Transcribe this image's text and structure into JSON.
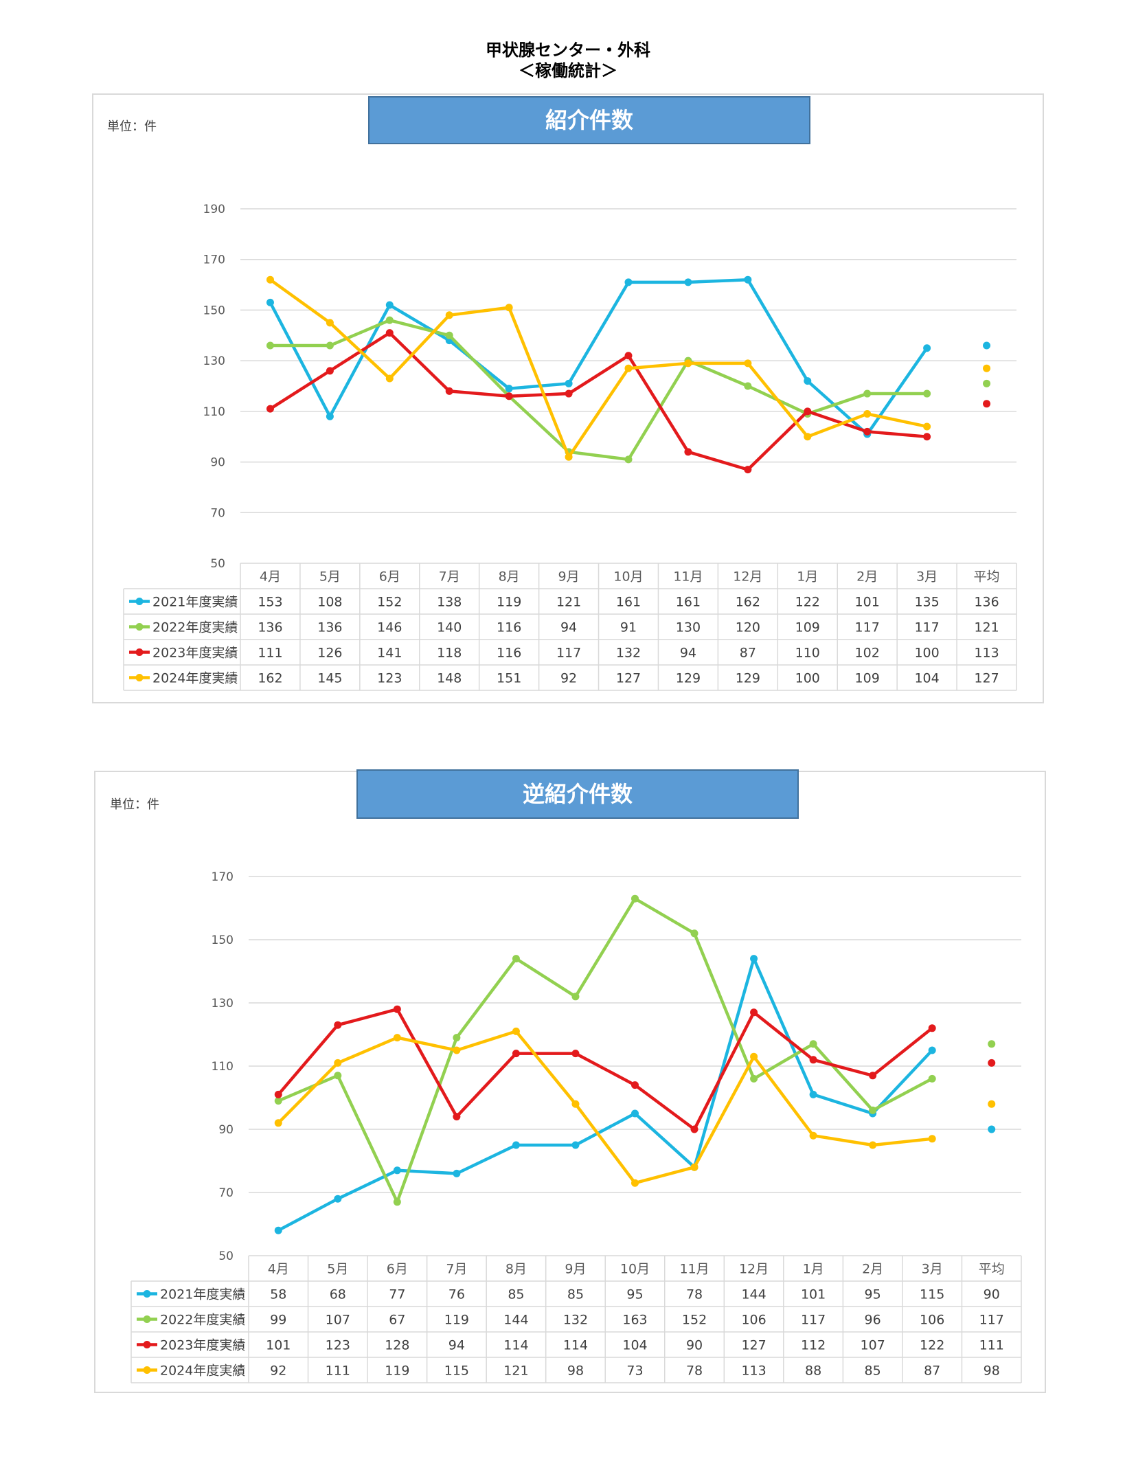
{
  "page": {
    "title_line1": "甲状腺センター・外科",
    "title_line2": "＜稼働統計＞"
  },
  "charts": {
    "referral": {
      "header": "紹介件数",
      "unit": "単位：件"
    },
    "reverse_referral": {
      "header": "逆紹介件数",
      "unit": "単位：件"
    }
  },
  "colors": {
    "2021": "#1cb5e0",
    "2022": "#92d050",
    "2023": "#e31a1c",
    "2024": "#ffc000"
  },
  "chart_data": [
    {
      "type": "line",
      "title": "紹介件数",
      "categories": [
        "4月",
        "5月",
        "6月",
        "7月",
        "8月",
        "9月",
        "10月",
        "11月",
        "12月",
        "1月",
        "2月",
        "3月",
        "平均"
      ],
      "yticks": [
        50,
        70,
        90,
        110,
        130,
        150,
        170,
        190
      ],
      "ylim": [
        50,
        190
      ],
      "grid": true,
      "legend": "data-table",
      "series": [
        {
          "name": "2021年度実績",
          "color": "#1cb5e0",
          "values": [
            153,
            108,
            152,
            138,
            119,
            121,
            161,
            161,
            162,
            122,
            101,
            135,
            136
          ]
        },
        {
          "name": "2022年度実績",
          "color": "#92d050",
          "values": [
            136,
            136,
            146,
            140,
            116,
            94,
            91,
            130,
            120,
            109,
            117,
            117,
            121
          ]
        },
        {
          "name": "2023年度実績",
          "color": "#e31a1c",
          "values": [
            111,
            126,
            141,
            118,
            116,
            117,
            132,
            94,
            87,
            110,
            102,
            100,
            113
          ]
        },
        {
          "name": "2024年度実績",
          "color": "#ffc000",
          "values": [
            162,
            145,
            123,
            148,
            151,
            92,
            127,
            129,
            129,
            100,
            109,
            104,
            127
          ]
        }
      ]
    },
    {
      "type": "line",
      "title": "逆紹介件数",
      "categories": [
        "4月",
        "5月",
        "6月",
        "7月",
        "8月",
        "9月",
        "10月",
        "11月",
        "12月",
        "1月",
        "2月",
        "3月",
        "平均"
      ],
      "yticks": [
        50,
        70,
        90,
        110,
        130,
        150,
        170
      ],
      "ylim": [
        50,
        170
      ],
      "grid": true,
      "legend": "data-table",
      "series": [
        {
          "name": "2021年度実績",
          "color": "#1cb5e0",
          "values": [
            58,
            68,
            77,
            76,
            85,
            85,
            95,
            78,
            144,
            101,
            95,
            115,
            90
          ]
        },
        {
          "name": "2022年度実績",
          "color": "#92d050",
          "values": [
            99,
            107,
            67,
            119,
            144,
            132,
            163,
            152,
            106,
            117,
            96,
            106,
            117
          ]
        },
        {
          "name": "2023年度実績",
          "color": "#e31a1c",
          "values": [
            101,
            123,
            128,
            94,
            114,
            114,
            104,
            90,
            127,
            112,
            107,
            122,
            111
          ]
        },
        {
          "name": "2024年度実績",
          "color": "#ffc000",
          "values": [
            92,
            111,
            119,
            115,
            121,
            98,
            73,
            78,
            113,
            88,
            85,
            87,
            98
          ]
        }
      ]
    }
  ]
}
